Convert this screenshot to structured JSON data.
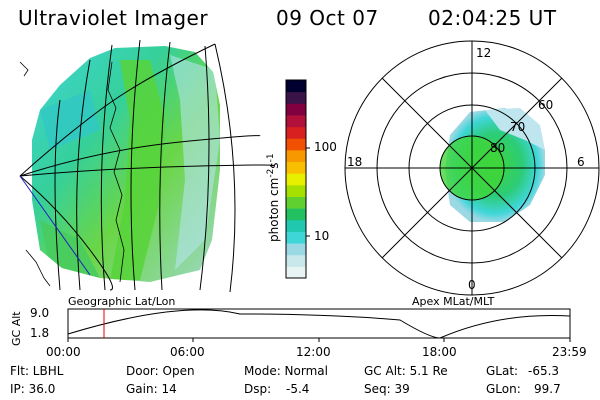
{
  "header": {
    "instrument": "Ultraviolet Imager",
    "date": "09 Oct 07",
    "time": "02:04:25 UT"
  },
  "colorbar": {
    "unit_label": "photon cm",
    "unit_sup1": "-2",
    "unit_mid": "s",
    "unit_sup2": "-1",
    "ticks": [
      "100",
      "10"
    ],
    "colors": [
      "#e8f4f4",
      "#c8e8ec",
      "#9ad8e4",
      "#3fd6d8",
      "#20c8b0",
      "#22c060",
      "#60d030",
      "#a6e000",
      "#e8f000",
      "#f8c000",
      "#f89800",
      "#f05000",
      "#d82020",
      "#b0103a",
      "#800040",
      "#3a1448",
      "#000030"
    ]
  },
  "polar_plot": {
    "mlt_labels": [
      "12",
      "18",
      "6",
      "0"
    ],
    "lat_labels": [
      "60",
      "70",
      "80"
    ]
  },
  "timeline": {
    "left_label": "Geographic Lat/Lon",
    "right_label": "Apex MLat/MLT",
    "y_axis_label": "GC Alt",
    "y_ticks": [
      "9.0",
      "1.8"
    ],
    "x_ticks": [
      "00:00",
      "06:00",
      "12:00",
      "18:00",
      "23:59"
    ],
    "current_marker_time": "02:04:25"
  },
  "info": {
    "row1": {
      "filter": "Flt: LBHL",
      "door": "Door: Open",
      "mode": "Mode: Normal",
      "gc_alt": "GC Alt: 5.1 Re",
      "glat_label": "GLat:",
      "glat_value": "-65.3"
    },
    "row2": {
      "ip": "IP: 36.0",
      "gain": "Gain: 14",
      "dsp_label": "Dsp:",
      "dsp_value": "-5.4",
      "seq": "Seq: 39",
      "glon_label": "GLon:",
      "glon_value": "99.7"
    }
  }
}
